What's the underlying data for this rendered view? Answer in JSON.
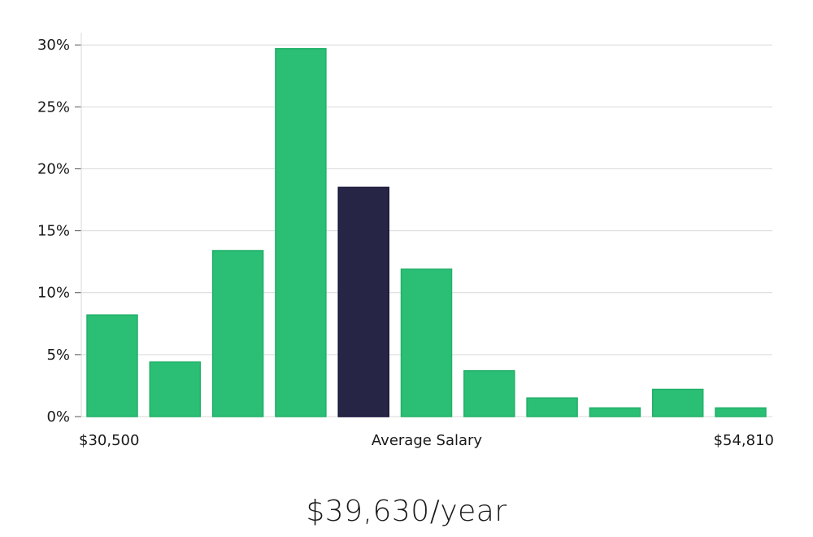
{
  "chart_data": {
    "type": "bar",
    "categories": [
      "1",
      "2",
      "3",
      "4",
      "5",
      "6",
      "7",
      "8",
      "9",
      "10",
      "11"
    ],
    "values": [
      8.2,
      4.4,
      13.4,
      29.7,
      18.5,
      11.9,
      3.7,
      1.5,
      0.7,
      2.2,
      0.7
    ],
    "highlight_index": 4,
    "ylim": [
      0,
      31
    ],
    "y_ticks": [
      0,
      5,
      10,
      15,
      20,
      25,
      30
    ],
    "y_tick_format": "%",
    "x_labels": {
      "left": "$30,500",
      "center": "Average Salary",
      "right": "$54,810"
    },
    "grid": true,
    "colors": {
      "bar": "#2bbf76",
      "bar_edge": "#22b068",
      "highlight": "#272546",
      "highlight_edge": "#16143a",
      "grid": "#d9d9d9",
      "axis": "#d9d9d9"
    }
  },
  "summary": {
    "salary": "$39,630/year"
  }
}
